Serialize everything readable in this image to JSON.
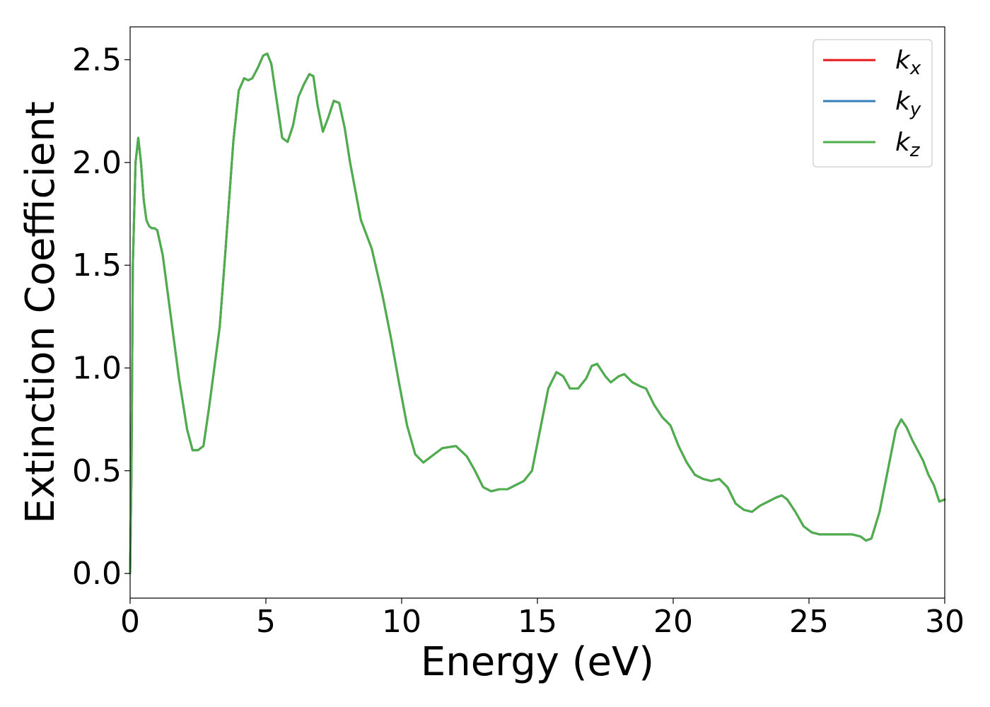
{
  "chart_data": {
    "type": "line",
    "title": "",
    "xlabel": "Energy (eV)",
    "ylabel": "Extinction Coefficient",
    "xlim": [
      0,
      30
    ],
    "ylim": [
      -0.12,
      2.66
    ],
    "xticks": [
      0,
      5,
      10,
      15,
      20,
      25,
      30
    ],
    "xtick_labels": [
      "0",
      "5",
      "10",
      "15",
      "20",
      "25",
      "30"
    ],
    "yticks": [
      0.0,
      0.5,
      1.0,
      1.5,
      2.0,
      2.5
    ],
    "ytick_labels": [
      "0.0",
      "0.5",
      "1.0",
      "1.5",
      "2.0",
      "2.5"
    ],
    "grid": false,
    "legend_position": "top-right",
    "series": [
      {
        "name_main": "k",
        "name_sub": "x",
        "color": "#e41a1c",
        "x": [
          0,
          0.05,
          0.1,
          0.2,
          0.3,
          0.4,
          0.5,
          0.6,
          0.7,
          0.8,
          0.9,
          1.0,
          1.2,
          1.5,
          1.8,
          2.1,
          2.3,
          2.5,
          2.7,
          2.9,
          3.1,
          3.3,
          3.5,
          3.8,
          4.0,
          4.2,
          4.35,
          4.5,
          4.7,
          4.9,
          5.05,
          5.2,
          5.4,
          5.6,
          5.8,
          6.0,
          6.2,
          6.4,
          6.6,
          6.75,
          6.9,
          7.1,
          7.3,
          7.5,
          7.7,
          7.9,
          8.1,
          8.5,
          8.9,
          9.3,
          9.6,
          9.9,
          10.2,
          10.5,
          10.8,
          11.1,
          11.5,
          12.0,
          12.4,
          12.7,
          13.0,
          13.3,
          13.6,
          13.9,
          14.2,
          14.5,
          14.8,
          15.1,
          15.4,
          15.7,
          15.95,
          16.2,
          16.5,
          16.8,
          17.0,
          17.2,
          17.5,
          17.7,
          18.0,
          18.2,
          18.5,
          18.8,
          19.0,
          19.3,
          19.6,
          19.9,
          20.2,
          20.5,
          20.8,
          21.1,
          21.4,
          21.7,
          22.0,
          22.3,
          22.6,
          22.9,
          23.2,
          23.5,
          23.8,
          24.0,
          24.2,
          24.5,
          24.8,
          25.1,
          25.4,
          25.7,
          26.0,
          26.3,
          26.6,
          26.9,
          27.1,
          27.3,
          27.6,
          27.9,
          28.2,
          28.4,
          28.6,
          28.8,
          29.0,
          29.2,
          29.4,
          29.6,
          29.8,
          30.0
        ],
        "y": [
          0.0,
          0.5,
          1.5,
          2.0,
          2.12,
          2.0,
          1.82,
          1.72,
          1.69,
          1.68,
          1.68,
          1.67,
          1.55,
          1.25,
          0.95,
          0.7,
          0.6,
          0.6,
          0.62,
          0.8,
          1.0,
          1.2,
          1.55,
          2.1,
          2.35,
          2.41,
          2.4,
          2.41,
          2.46,
          2.52,
          2.53,
          2.48,
          2.3,
          2.12,
          2.1,
          2.18,
          2.32,
          2.38,
          2.43,
          2.42,
          2.28,
          2.15,
          2.22,
          2.3,
          2.29,
          2.17,
          2.0,
          1.72,
          1.58,
          1.35,
          1.15,
          0.93,
          0.72,
          0.58,
          0.54,
          0.57,
          0.61,
          0.62,
          0.57,
          0.5,
          0.42,
          0.4,
          0.41,
          0.41,
          0.43,
          0.45,
          0.5,
          0.7,
          0.9,
          0.98,
          0.96,
          0.9,
          0.9,
          0.95,
          1.01,
          1.02,
          0.96,
          0.93,
          0.96,
          0.97,
          0.93,
          0.91,
          0.9,
          0.82,
          0.76,
          0.72,
          0.62,
          0.54,
          0.48,
          0.46,
          0.45,
          0.46,
          0.42,
          0.34,
          0.31,
          0.3,
          0.33,
          0.35,
          0.37,
          0.38,
          0.36,
          0.3,
          0.23,
          0.2,
          0.19,
          0.19,
          0.19,
          0.19,
          0.19,
          0.18,
          0.16,
          0.17,
          0.3,
          0.5,
          0.7,
          0.75,
          0.71,
          0.65,
          0.6,
          0.55,
          0.48,
          0.43,
          0.35,
          0.36
        ]
      },
      {
        "name_main": "k",
        "name_sub": "y",
        "color": "#377eb8",
        "x": [
          0,
          0.05,
          0.1,
          0.2,
          0.3,
          0.4,
          0.5,
          0.6,
          0.7,
          0.8,
          0.9,
          1.0,
          1.2,
          1.5,
          1.8,
          2.1,
          2.3,
          2.5,
          2.7,
          2.9,
          3.1,
          3.3,
          3.5,
          3.8,
          4.0,
          4.2,
          4.35,
          4.5,
          4.7,
          4.9,
          5.05,
          5.2,
          5.4,
          5.6,
          5.8,
          6.0,
          6.2,
          6.4,
          6.6,
          6.75,
          6.9,
          7.1,
          7.3,
          7.5,
          7.7,
          7.9,
          8.1,
          8.5,
          8.9,
          9.3,
          9.6,
          9.9,
          10.2,
          10.5,
          10.8,
          11.1,
          11.5,
          12.0,
          12.4,
          12.7,
          13.0,
          13.3,
          13.6,
          13.9,
          14.2,
          14.5,
          14.8,
          15.1,
          15.4,
          15.7,
          15.95,
          16.2,
          16.5,
          16.8,
          17.0,
          17.2,
          17.5,
          17.7,
          18.0,
          18.2,
          18.5,
          18.8,
          19.0,
          19.3,
          19.6,
          19.9,
          20.2,
          20.5,
          20.8,
          21.1,
          21.4,
          21.7,
          22.0,
          22.3,
          22.6,
          22.9,
          23.2,
          23.5,
          23.8,
          24.0,
          24.2,
          24.5,
          24.8,
          25.1,
          25.4,
          25.7,
          26.0,
          26.3,
          26.6,
          26.9,
          27.1,
          27.3,
          27.6,
          27.9,
          28.2,
          28.4,
          28.6,
          28.8,
          29.0,
          29.2,
          29.4,
          29.6,
          29.8,
          30.0
        ],
        "y": [
          0.0,
          0.5,
          1.5,
          2.0,
          2.12,
          2.0,
          1.82,
          1.72,
          1.69,
          1.68,
          1.68,
          1.67,
          1.55,
          1.25,
          0.95,
          0.7,
          0.6,
          0.6,
          0.62,
          0.8,
          1.0,
          1.2,
          1.55,
          2.1,
          2.35,
          2.41,
          2.4,
          2.41,
          2.46,
          2.52,
          2.53,
          2.48,
          2.3,
          2.12,
          2.1,
          2.18,
          2.32,
          2.38,
          2.43,
          2.42,
          2.28,
          2.15,
          2.22,
          2.3,
          2.29,
          2.17,
          2.0,
          1.72,
          1.58,
          1.35,
          1.15,
          0.93,
          0.72,
          0.58,
          0.54,
          0.57,
          0.61,
          0.62,
          0.57,
          0.5,
          0.42,
          0.4,
          0.41,
          0.41,
          0.43,
          0.45,
          0.5,
          0.7,
          0.9,
          0.98,
          0.96,
          0.9,
          0.9,
          0.95,
          1.01,
          1.02,
          0.96,
          0.93,
          0.96,
          0.97,
          0.93,
          0.91,
          0.9,
          0.82,
          0.76,
          0.72,
          0.62,
          0.54,
          0.48,
          0.46,
          0.45,
          0.46,
          0.42,
          0.34,
          0.31,
          0.3,
          0.33,
          0.35,
          0.37,
          0.38,
          0.36,
          0.3,
          0.23,
          0.2,
          0.19,
          0.19,
          0.19,
          0.19,
          0.19,
          0.18,
          0.16,
          0.17,
          0.3,
          0.5,
          0.7,
          0.75,
          0.71,
          0.65,
          0.6,
          0.55,
          0.48,
          0.43,
          0.35,
          0.36
        ]
      },
      {
        "name_main": "k",
        "name_sub": "z",
        "color": "#4daf4a",
        "x": [
          0,
          0.05,
          0.1,
          0.2,
          0.3,
          0.4,
          0.5,
          0.6,
          0.7,
          0.8,
          0.9,
          1.0,
          1.2,
          1.5,
          1.8,
          2.1,
          2.3,
          2.5,
          2.7,
          2.9,
          3.1,
          3.3,
          3.5,
          3.8,
          4.0,
          4.2,
          4.35,
          4.5,
          4.7,
          4.9,
          5.05,
          5.2,
          5.4,
          5.6,
          5.8,
          6.0,
          6.2,
          6.4,
          6.6,
          6.75,
          6.9,
          7.1,
          7.3,
          7.5,
          7.7,
          7.9,
          8.1,
          8.5,
          8.9,
          9.3,
          9.6,
          9.9,
          10.2,
          10.5,
          10.8,
          11.1,
          11.5,
          12.0,
          12.4,
          12.7,
          13.0,
          13.3,
          13.6,
          13.9,
          14.2,
          14.5,
          14.8,
          15.1,
          15.4,
          15.7,
          15.95,
          16.2,
          16.5,
          16.8,
          17.0,
          17.2,
          17.5,
          17.7,
          18.0,
          18.2,
          18.5,
          18.8,
          19.0,
          19.3,
          19.6,
          19.9,
          20.2,
          20.5,
          20.8,
          21.1,
          21.4,
          21.7,
          22.0,
          22.3,
          22.6,
          22.9,
          23.2,
          23.5,
          23.8,
          24.0,
          24.2,
          24.5,
          24.8,
          25.1,
          25.4,
          25.7,
          26.0,
          26.3,
          26.6,
          26.9,
          27.1,
          27.3,
          27.6,
          27.9,
          28.2,
          28.4,
          28.6,
          28.8,
          29.0,
          29.2,
          29.4,
          29.6,
          29.8,
          30.0
        ],
        "y": [
          0.0,
          0.5,
          1.5,
          2.0,
          2.12,
          2.0,
          1.82,
          1.72,
          1.69,
          1.68,
          1.68,
          1.67,
          1.55,
          1.25,
          0.95,
          0.7,
          0.6,
          0.6,
          0.62,
          0.8,
          1.0,
          1.2,
          1.55,
          2.1,
          2.35,
          2.41,
          2.4,
          2.41,
          2.46,
          2.52,
          2.53,
          2.48,
          2.3,
          2.12,
          2.1,
          2.18,
          2.32,
          2.38,
          2.43,
          2.42,
          2.28,
          2.15,
          2.22,
          2.3,
          2.29,
          2.17,
          2.0,
          1.72,
          1.58,
          1.35,
          1.15,
          0.93,
          0.72,
          0.58,
          0.54,
          0.57,
          0.61,
          0.62,
          0.57,
          0.5,
          0.42,
          0.4,
          0.41,
          0.41,
          0.43,
          0.45,
          0.5,
          0.7,
          0.9,
          0.98,
          0.96,
          0.9,
          0.9,
          0.95,
          1.01,
          1.02,
          0.96,
          0.93,
          0.96,
          0.97,
          0.93,
          0.91,
          0.9,
          0.82,
          0.76,
          0.72,
          0.62,
          0.54,
          0.48,
          0.46,
          0.45,
          0.46,
          0.42,
          0.34,
          0.31,
          0.3,
          0.33,
          0.35,
          0.37,
          0.38,
          0.36,
          0.3,
          0.23,
          0.2,
          0.19,
          0.19,
          0.19,
          0.19,
          0.19,
          0.18,
          0.16,
          0.17,
          0.3,
          0.5,
          0.7,
          0.75,
          0.71,
          0.65,
          0.6,
          0.55,
          0.48,
          0.43,
          0.35,
          0.36
        ]
      }
    ]
  }
}
